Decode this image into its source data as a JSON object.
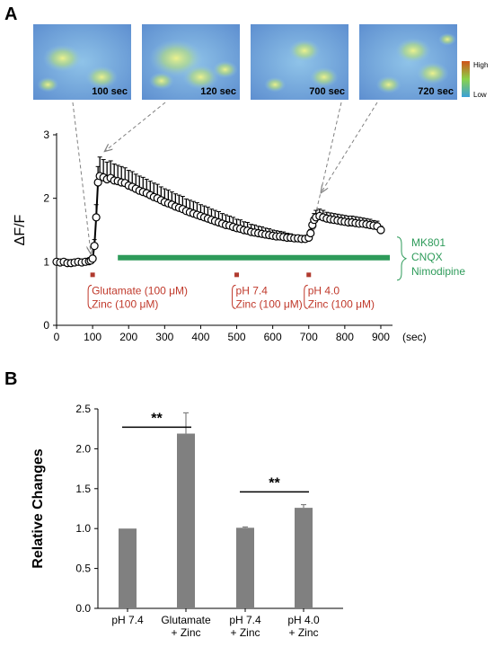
{
  "chart_data": [
    {
      "panel": "A",
      "type": "line",
      "xlabel_unit": "(sec)",
      "ylabel": "ΔF/F",
      "xlim": [
        0,
        950
      ],
      "ylim": [
        0,
        3
      ],
      "xticks": [
        "0",
        "100",
        "200",
        "300",
        "400",
        "500",
        "600",
        "700",
        "800",
        "900"
      ],
      "yticks": [
        "0",
        "1",
        "2",
        "3"
      ],
      "series": [
        {
          "x": [
            0,
            10,
            20,
            30,
            40,
            50,
            60,
            70,
            80,
            90,
            95,
            100,
            105,
            110,
            115,
            120,
            130,
            140,
            150,
            160,
            170,
            180,
            190,
            200,
            210,
            220,
            230,
            240,
            250,
            260,
            270,
            280,
            290,
            300,
            310,
            320,
            330,
            340,
            350,
            360,
            370,
            380,
            390,
            400,
            410,
            420,
            430,
            440,
            450,
            460,
            470,
            480,
            490,
            500,
            510,
            520,
            530,
            540,
            550,
            560,
            570,
            580,
            590,
            600,
            610,
            620,
            630,
            640,
            650,
            660,
            670,
            680,
            690,
            700,
            705,
            710,
            715,
            720,
            730,
            740,
            750,
            760,
            770,
            780,
            790,
            800,
            810,
            820,
            830,
            840,
            850,
            860,
            870,
            880,
            890,
            900
          ],
          "y": [
            1.0,
            0.99,
            1.0,
            0.98,
            0.98,
            0.99,
            1.0,
            0.99,
            1.0,
            1.01,
            1.02,
            1.05,
            1.25,
            1.7,
            2.25,
            2.35,
            2.33,
            2.3,
            2.32,
            2.28,
            2.27,
            2.25,
            2.24,
            2.2,
            2.18,
            2.15,
            2.12,
            2.1,
            2.08,
            2.05,
            2.02,
            2.0,
            1.97,
            1.94,
            1.92,
            1.9,
            1.87,
            1.85,
            1.83,
            1.8,
            1.78,
            1.76,
            1.74,
            1.72,
            1.7,
            1.68,
            1.66,
            1.64,
            1.62,
            1.6,
            1.58,
            1.57,
            1.55,
            1.53,
            1.52,
            1.5,
            1.49,
            1.47,
            1.46,
            1.45,
            1.44,
            1.43,
            1.42,
            1.41,
            1.4,
            1.4,
            1.39,
            1.38,
            1.38,
            1.37,
            1.37,
            1.36,
            1.36,
            1.38,
            1.45,
            1.58,
            1.66,
            1.7,
            1.72,
            1.7,
            1.68,
            1.67,
            1.66,
            1.65,
            1.64,
            1.63,
            1.62,
            1.62,
            1.61,
            1.6,
            1.6,
            1.59,
            1.58,
            1.57,
            1.56,
            1.5
          ],
          "error": [
            0.03,
            0.03,
            0.03,
            0.03,
            0.03,
            0.03,
            0.03,
            0.03,
            0.03,
            0.03,
            0.04,
            0.05,
            0.1,
            0.2,
            0.25,
            0.3,
            0.28,
            0.27,
            0.27,
            0.26,
            0.25,
            0.25,
            0.24,
            0.24,
            0.24,
            0.23,
            0.23,
            0.23,
            0.22,
            0.22,
            0.22,
            0.22,
            0.21,
            0.21,
            0.21,
            0.2,
            0.2,
            0.2,
            0.2,
            0.19,
            0.19,
            0.19,
            0.19,
            0.18,
            0.18,
            0.18,
            0.17,
            0.17,
            0.17,
            0.16,
            0.16,
            0.15,
            0.15,
            0.14,
            0.14,
            0.13,
            0.13,
            0.12,
            0.12,
            0.11,
            0.11,
            0.1,
            0.1,
            0.09,
            0.09,
            0.08,
            0.08,
            0.07,
            0.06,
            0.05,
            0.05,
            0.05,
            0.05,
            0.05,
            0.06,
            0.08,
            0.1,
            0.11,
            0.11,
            0.11,
            0.1,
            0.1,
            0.1,
            0.1,
            0.1,
            0.1,
            0.1,
            0.1,
            0.1,
            0.1,
            0.09,
            0.09,
            0.09,
            0.08,
            0.08,
            0.06
          ]
        }
      ],
      "inhibitor_bar": {
        "start": 170,
        "end": 950,
        "y": 1.05,
        "color": "#2e9b5a"
      },
      "inhibitor_labels": [
        "MK801",
        "CNQX",
        "Nimodipine"
      ],
      "markers": [
        {
          "x": 100,
          "lines": [
            "Glutamate (100 μM)",
            "Zinc (100 μM)"
          ]
        },
        {
          "x": 500,
          "lines": [
            "pH 7.4",
            "Zinc (100 μM)"
          ]
        },
        {
          "x": 700,
          "lines": [
            "pH 4.0",
            "Zinc (100 μM)"
          ]
        }
      ],
      "images": [
        {
          "label": "100 sec",
          "points_to": 100
        },
        {
          "label": "120 sec",
          "points_to": 120
        },
        {
          "label": "700 sec",
          "points_to": 700
        },
        {
          "label": "720 sec",
          "points_to": 720
        }
      ],
      "colorbar": {
        "high": "High",
        "low": "Low"
      },
      "colors": {
        "marker_red": "#b03a2e",
        "text_red": "#c0392b",
        "green": "#2e9b5a"
      }
    },
    {
      "panel": "B",
      "type": "bar",
      "ylabel": "Relative Changes",
      "ylim": [
        0,
        2.5
      ],
      "yticks": [
        "0.0",
        "0.5",
        "1.0",
        "1.5",
        "2.0",
        "2.5"
      ],
      "categories": [
        [
          "pH 7.4"
        ],
        [
          "Glutamate",
          "+ Zinc"
        ],
        [
          "pH 7.4",
          "+ Zinc"
        ],
        [
          "pH 4.0",
          "+ Zinc"
        ]
      ],
      "values": [
        1.0,
        2.19,
        1.01,
        1.26
      ],
      "errors": [
        0.0,
        0.26,
        0.01,
        0.04
      ],
      "significance": [
        {
          "from": 0,
          "to": 1,
          "label": "**"
        },
        {
          "from": 2,
          "to": 3,
          "label": "**"
        }
      ],
      "bar_color": "#808080"
    }
  ],
  "panel_labels": {
    "a": "A",
    "b": "B"
  }
}
